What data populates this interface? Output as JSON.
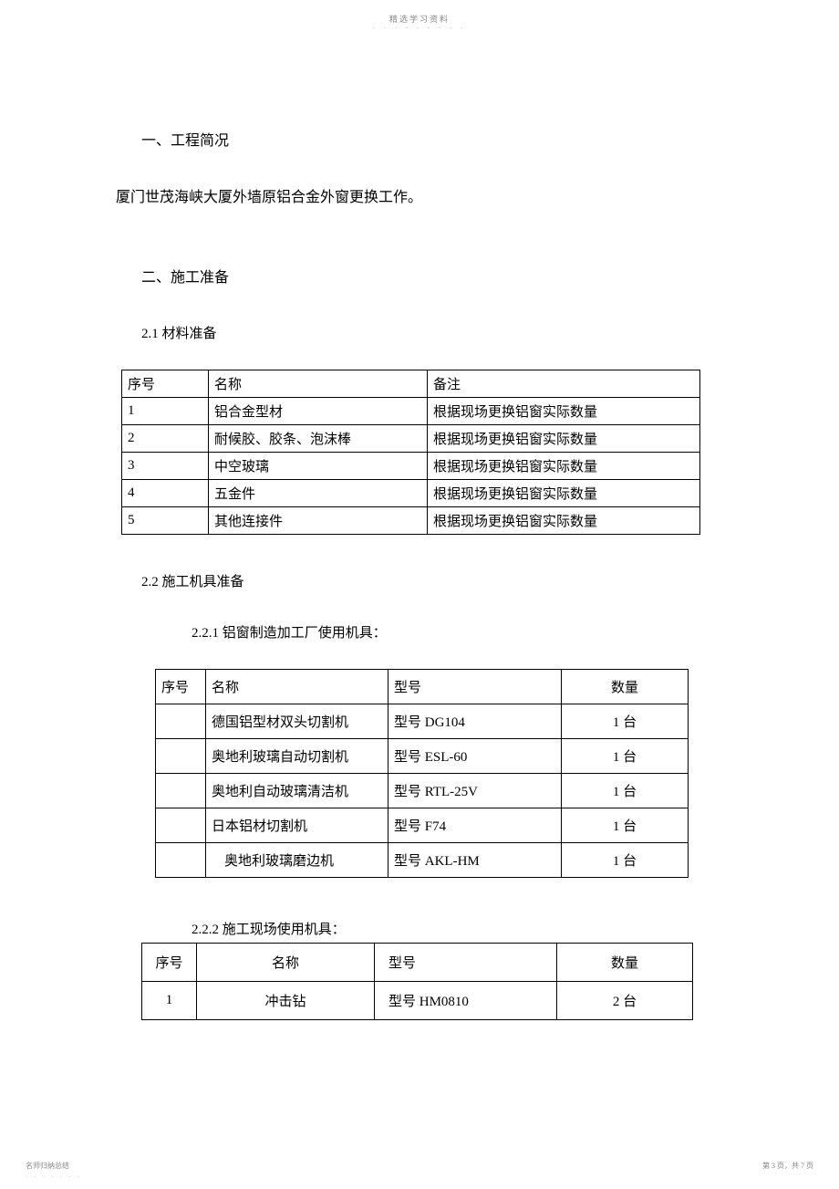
{
  "watermark": {
    "top": "精选学习资料",
    "top_sub": "- - - - - - - - -",
    "bottom_left": "名师归纳总结",
    "bottom_left_sub": "- - - - - - -",
    "bottom_right": "第 3 页，共 7 页"
  },
  "section1": {
    "heading": "一、工程简况",
    "body": "厦门世茂海峡大厦外墙原铝合金外窗更换工作。"
  },
  "section2": {
    "heading": "二、施工准备",
    "sub21": {
      "heading": "2.1  材料准备",
      "table": {
        "headers": [
          "序号",
          "名称",
          "备注"
        ],
        "rows": [
          [
            "1",
            "铝合金型材",
            "根据现场更换铝窗实际数量"
          ],
          [
            "2",
            "耐候胶、胶条、泡沫棒",
            "根据现场更换铝窗实际数量"
          ],
          [
            "3",
            "中空玻璃",
            "根据现场更换铝窗实际数量"
          ],
          [
            "4",
            "五金件",
            "根据现场更换铝窗实际数量"
          ],
          [
            "5",
            "其他连接件",
            "根据现场更换铝窗实际数量"
          ]
        ]
      }
    },
    "sub22": {
      "heading": "2.2  施工机具准备",
      "sub221": {
        "heading": "2.2.1  铝窗制造加工厂使用机具：",
        "table": {
          "headers": [
            "序号",
            "名称",
            "型号",
            "数量"
          ],
          "rows": [
            [
              "",
              "德国铝型材双头切割机",
              "型号 DG104",
              "1 台"
            ],
            [
              "",
              "奥地利玻璃自动切割机",
              "型号 ESL-60",
              "1 台"
            ],
            [
              "",
              "奥地利自动玻璃清洁机",
              "型号 RTL-25V",
              "1 台"
            ],
            [
              "",
              "日本铝材切割机",
              "型号 F74",
              "1 台"
            ],
            [
              "",
              "奥地利玻璃磨边机",
              "型号 AKL-HM",
              "1 台"
            ]
          ],
          "indented_row": 4
        }
      },
      "sub222": {
        "heading": "2.2.2  施工现场使用机具：",
        "table": {
          "headers": [
            "序号",
            "名称",
            "型号",
            "数量"
          ],
          "rows": [
            [
              "1",
              "冲击钻",
              "型号 HM0810",
              "2 台"
            ]
          ]
        }
      }
    }
  }
}
